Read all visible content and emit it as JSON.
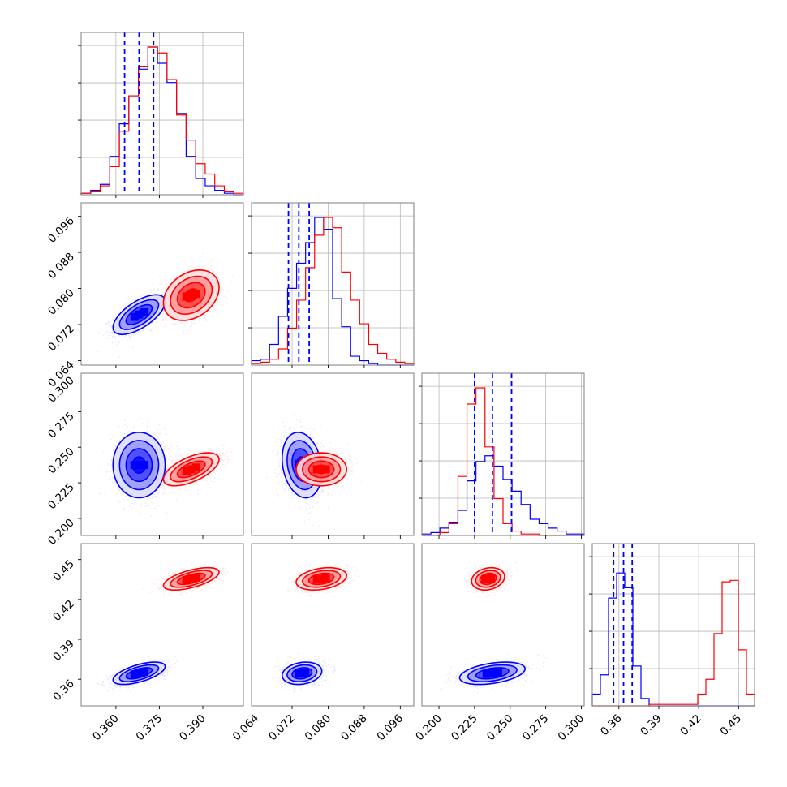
{
  "chart_data": {
    "type": "corner",
    "title": "",
    "grid": true,
    "parameters": [
      {
        "range": [
          0.348,
          0.404
        ],
        "ticks": [
          0.36,
          0.375,
          0.39
        ],
        "tick_labels": [
          "0.360",
          "0.375",
          "0.390"
        ]
      },
      {
        "range": [
          0.063,
          0.099
        ],
        "ticks": [
          0.064,
          0.072,
          0.08,
          0.088,
          0.096
        ],
        "tick_labels": [
          "0.064",
          "0.072",
          "0.080",
          "0.088",
          "0.096"
        ]
      },
      {
        "range": [
          0.188,
          0.302
        ],
        "ticks": [
          0.2,
          0.225,
          0.25,
          0.275,
          0.3
        ],
        "tick_labels": [
          "0.200",
          "0.225",
          "0.250",
          "0.275",
          "0.300"
        ]
      },
      {
        "range": [
          0.34,
          0.462
        ],
        "ticks": [
          0.36,
          0.39,
          0.42,
          0.45
        ],
        "tick_labels": [
          "0.36",
          "0.39",
          "0.42",
          "0.45"
        ]
      }
    ],
    "series": [
      {
        "color": "#0000ff",
        "mean": [
          0.368,
          0.0742,
          0.2375,
          0.3645
        ],
        "std": [
          0.0045,
          0.0022,
          0.0115,
          0.0042
        ],
        "corr": [
          [
            0,
            1,
            0.65
          ],
          [
            0,
            2,
            0.0
          ],
          [
            0,
            3,
            0.6
          ],
          [
            1,
            2,
            -0.2
          ],
          [
            1,
            3,
            0.2
          ],
          [
            2,
            3,
            0.4
          ]
        ],
        "quantiles": [
          [
            0.363,
            0.368,
            0.373
          ],
          [
            0.0712,
            0.0735,
            0.0758
          ],
          [
            0.225,
            0.2375,
            0.251
          ],
          [
            0.356,
            0.3635,
            0.37
          ]
        ],
        "hist": [
          [
            1,
            3,
            7,
            26,
            48,
            67,
            85,
            100,
            89,
            76,
            55,
            26,
            11,
            6,
            3,
            1,
            0
          ],
          [
            3,
            4,
            14,
            33,
            52,
            69,
            83,
            100,
            92,
            45,
            26,
            6,
            3,
            1,
            0,
            0,
            0,
            0
          ],
          [
            1,
            2,
            5,
            9,
            17,
            37,
            50,
            54,
            47,
            38,
            30,
            21,
            11,
            8,
            5,
            3,
            1,
            1
          ],
          [
            8,
            21,
            73,
            90,
            80,
            27,
            5,
            0,
            0,
            0,
            0,
            0,
            0,
            0,
            0,
            0,
            0,
            0,
            0,
            0
          ]
        ]
      },
      {
        "color": "#ff0000",
        "mean": [
          0.386,
          0.0785,
          0.2345,
          0.4355
        ],
        "std": [
          0.0048,
          0.0028,
          0.0058,
          0.0042
        ],
        "corr": [
          [
            0,
            1,
            0.3
          ],
          [
            0,
            2,
            0.6
          ],
          [
            0,
            3,
            0.6
          ],
          [
            1,
            2,
            0.0
          ],
          [
            1,
            3,
            0.3
          ],
          [
            2,
            3,
            0.2
          ]
        ],
        "quantiles": [],
        "hist": [
          [
            1,
            2,
            6,
            19,
            43,
            67,
            87,
            100,
            96,
            78,
            54,
            37,
            21,
            14,
            6,
            2,
            1
          ],
          [
            1,
            2,
            4,
            11,
            25,
            44,
            66,
            88,
            100,
            93,
            63,
            44,
            28,
            14,
            8,
            4,
            2,
            1
          ],
          [
            0,
            0,
            2,
            8,
            40,
            89,
            100,
            60,
            25,
            8,
            3,
            1,
            1,
            0,
            0,
            0,
            0,
            0
          ],
          [
            0,
            0,
            0,
            0,
            0,
            0,
            0,
            1,
            1,
            1,
            1,
            1,
            1,
            8,
            18,
            49,
            84,
            85,
            38,
            8
          ]
        ]
      }
    ]
  }
}
